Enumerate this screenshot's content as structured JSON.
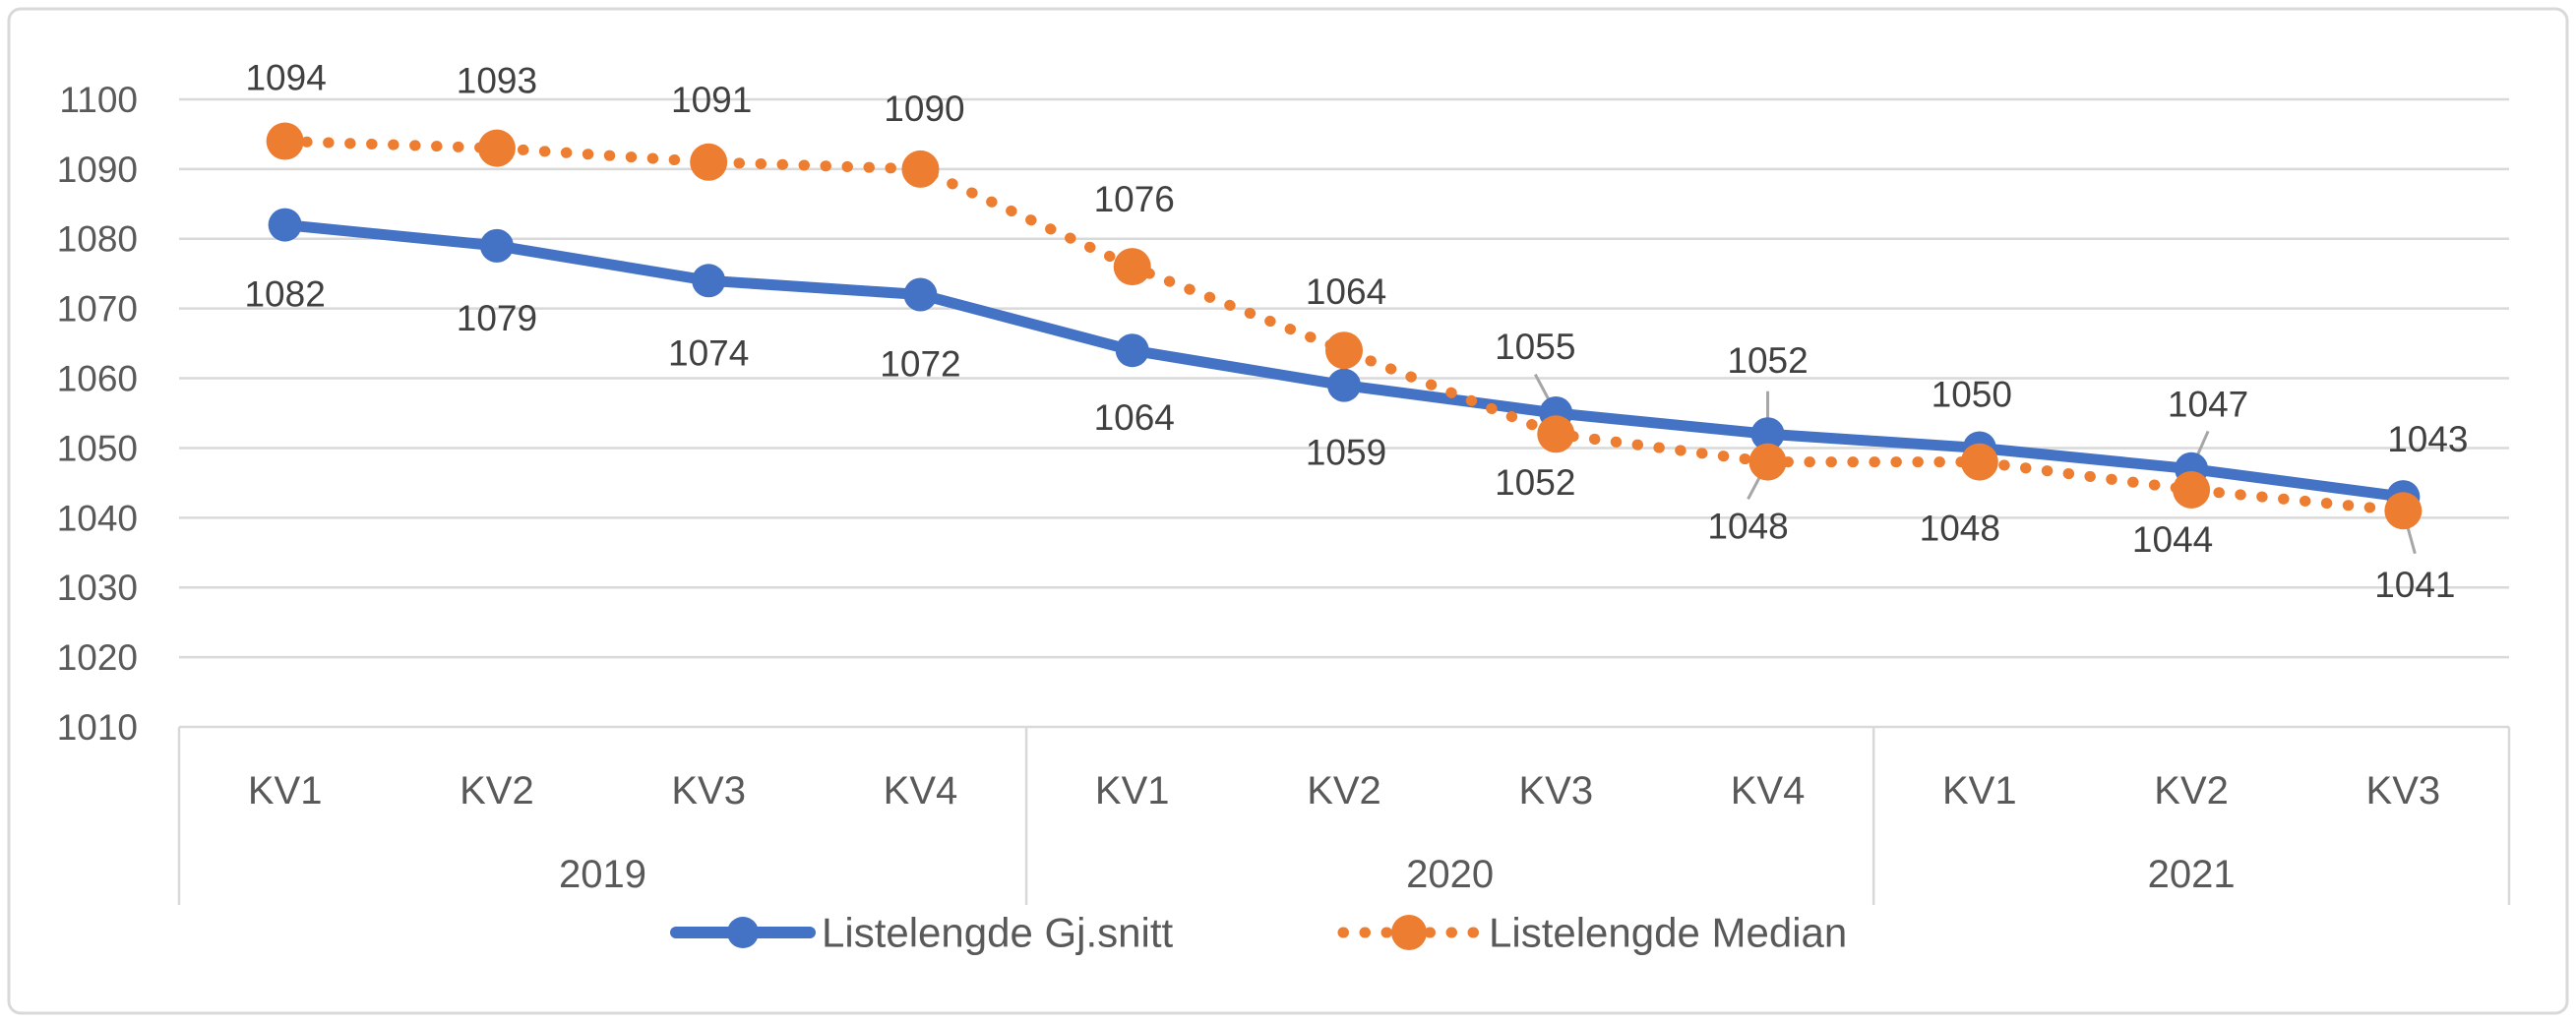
{
  "chart_data": {
    "type": "line",
    "title": "",
    "xlabel": "",
    "ylabel": "",
    "categories": [
      "KV1",
      "KV2",
      "KV3",
      "KV4",
      "KV1",
      "KV2",
      "KV3",
      "KV4",
      "KV1",
      "KV2",
      "KV3"
    ],
    "year_groups": [
      {
        "label": "2019",
        "count": 4
      },
      {
        "label": "2020",
        "count": 4
      },
      {
        "label": "2021",
        "count": 3
      }
    ],
    "ylim": [
      1010,
      1100
    ],
    "ytick_step": 10,
    "yticks": [
      1010,
      1020,
      1030,
      1040,
      1050,
      1060,
      1070,
      1080,
      1090,
      1100
    ],
    "grid": true,
    "legend_position": "bottom-center",
    "series": [
      {
        "name": "Listelengde Gj.snitt",
        "color": "#4472C4",
        "line_style": "solid",
        "marker": "circle",
        "values": [
          1082,
          1079,
          1074,
          1072,
          1064,
          1059,
          1055,
          1052,
          1050,
          1047,
          1043
        ],
        "label_offsets": [
          [
            0,
            70
          ],
          [
            0,
            73
          ],
          [
            0,
            73
          ],
          [
            0,
            70
          ],
          [
            2,
            68
          ],
          [
            2,
            68
          ],
          [
            -21,
            -68
          ],
          [
            0,
            -75
          ],
          [
            -8,
            -55
          ],
          [
            17,
            -66
          ],
          [
            25,
            -59
          ]
        ],
        "label_leaders": [
          false,
          false,
          false,
          false,
          false,
          false,
          true,
          true,
          false,
          true,
          false
        ]
      },
      {
        "name": "Listelengde Median",
        "color": "#ED7D31",
        "line_style": "dotted",
        "marker": "circle",
        "values": [
          1094,
          1093,
          1091,
          1090,
          1076,
          1064,
          1052,
          1048,
          1048,
          1044,
          1041
        ],
        "label_offsets": [
          [
            1,
            -65
          ],
          [
            0,
            -69
          ],
          [
            3,
            -64
          ],
          [
            4,
            -62
          ],
          [
            2,
            -69
          ],
          [
            2,
            -60
          ],
          [
            -21,
            49
          ],
          [
            -20,
            65
          ],
          [
            -20,
            67
          ],
          [
            -19,
            50
          ],
          [
            12,
            75
          ]
        ],
        "label_leaders": [
          false,
          false,
          false,
          false,
          false,
          false,
          false,
          true,
          false,
          false,
          true
        ]
      }
    ],
    "colors": {
      "grid": "#D9D9D9",
      "border": "#D9D9D9",
      "axis_text": "#595959",
      "category_text": "#595959",
      "data_label_text": "#404040",
      "leader_line": "#A6A6A6",
      "background": "#FFFFFF"
    }
  }
}
